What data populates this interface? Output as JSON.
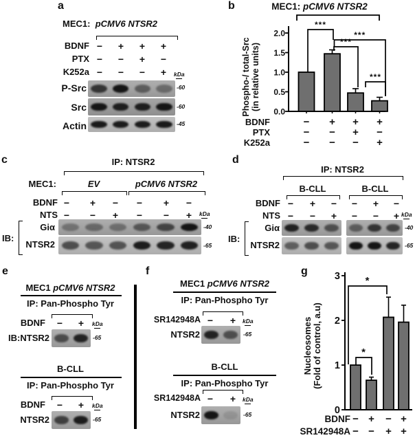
{
  "panels": {
    "a": {
      "letter": "a",
      "header": {
        "prefix": "MEC1:",
        "construct": "pCMV6 NTSR2"
      },
      "kda": "kDa",
      "rows": [
        {
          "label": "BDNF",
          "values": [
            "-",
            "+",
            "+",
            "+"
          ]
        },
        {
          "label": "PTX",
          "values": [
            "-",
            "-",
            "+",
            "-"
          ]
        },
        {
          "label": "K252a",
          "values": [
            "-",
            "-",
            "-",
            "+"
          ]
        }
      ],
      "blots": [
        {
          "label": "P-Src",
          "marker": "-60",
          "bands": [
            0.78,
            1.0,
            0.5,
            0.4
          ]
        },
        {
          "label": "Src",
          "marker": "-60",
          "bands": [
            1.0,
            0.93,
            0.93,
            1.0
          ]
        },
        {
          "label": "Actin",
          "marker": "-45",
          "bands": [
            0.97,
            0.95,
            0.95,
            0.97
          ]
        }
      ]
    },
    "c": {
      "letter": "c",
      "ip": "IP: NTSR2",
      "cell_label": "MEC1:",
      "groups": [
        {
          "name": "EV"
        },
        {
          "name": "pCMV6 NTSR2"
        }
      ],
      "ib": "IB:",
      "kda": "kDa",
      "rows": [
        {
          "label": "BDNF",
          "values": [
            "-",
            "+",
            "-",
            "-",
            "+",
            "-"
          ]
        },
        {
          "label": "NTS",
          "values": [
            "-",
            "-",
            "+",
            "-",
            "-",
            "+"
          ]
        }
      ],
      "blots": [
        {
          "label": "Giα",
          "marker": "-40",
          "bands": [
            0.35,
            0.42,
            0.38,
            0.55,
            0.68,
            1.0
          ]
        },
        {
          "label": "NTSR2",
          "marker": "-65",
          "bands": [
            0.65,
            0.6,
            0.62,
            0.95,
            0.9,
            0.92
          ]
        }
      ]
    },
    "d": {
      "letter": "d",
      "ip": "IP: NTSR2",
      "groups": [
        {
          "name": "B-CLL"
        },
        {
          "name": "B-CLL"
        }
      ],
      "ib": "IB:",
      "kda": "kDa",
      "rows": [
        {
          "label": "BDNF",
          "values": [
            "-",
            "+",
            "-",
            "-",
            "+",
            "-"
          ]
        },
        {
          "label": "NTS",
          "values": [
            "-",
            "-",
            "+",
            "-",
            "-",
            "+"
          ]
        }
      ],
      "blots": [
        {
          "label": "Giα",
          "marker": "-40",
          "bands_left": [
            0.92,
            0.86,
            0.6
          ],
          "bands_right": [
            0.5,
            0.78,
            0.68
          ]
        },
        {
          "label": "NTSR2",
          "marker": "-65",
          "bands_left": [
            0.55,
            0.65,
            0.6
          ],
          "bands_right": [
            1.0,
            1.0,
            0.9
          ]
        }
      ]
    },
    "e": {
      "letter": "e",
      "sections": [
        {
          "title_prefix": "MEC1 ",
          "title_italic": "pCMV6 NTSR2",
          "ip": "IP: Pan-Phospho Tyr",
          "row_label": "BDNF",
          "row_values": [
            "-",
            "+"
          ],
          "kda": "kDa",
          "blot_label": "IB:NTSR2",
          "marker": "-65",
          "bands": [
            0.62,
            0.9
          ]
        },
        {
          "title_prefix": "B-CLL",
          "title_italic": "",
          "ip": "IP: Pan-Phospho Tyr",
          "row_label": "BDNF",
          "row_values": [
            "-",
            "+"
          ],
          "kda": "kDa",
          "blot_label": "NTSR2",
          "marker": "-65",
          "bands": [
            0.7,
            0.95
          ]
        }
      ]
    },
    "f": {
      "letter": "f",
      "sections": [
        {
          "title_prefix": "MEC1 ",
          "title_italic": "pCMV6 NTSR2",
          "ip": "IP: Pan-Phospho Tyr",
          "row_label": "SR142948A",
          "row_values": [
            "-",
            "+"
          ],
          "kda": "kDa",
          "blot_label": "NTSR2",
          "marker": "-65",
          "bands": [
            0.9,
            0.6
          ]
        },
        {
          "title_prefix": "B-CLL",
          "title_italic": "",
          "ip": "IP: Pan-Phospho Tyr",
          "row_label": "SR142948A",
          "row_values": [
            "-",
            "+"
          ],
          "kda": "kDa",
          "blot_label": "NTSR2",
          "marker": "-65",
          "bands": [
            1.0,
            0.12
          ]
        }
      ]
    },
    "b": {
      "letter": "b"
    },
    "g": {
      "letter": "g"
    }
  },
  "chart_data": [
    {
      "panel": "b",
      "type": "bar",
      "title_prefix": "MEC1:",
      "title_italic": "pCMV6 NTSR2",
      "ylabel": [
        "Phospho-/ total-Src",
        "(in relative units)"
      ],
      "yticks": [
        "0.0",
        "0.5",
        "1.0",
        "1.5",
        "2.0"
      ],
      "ylim": [
        0,
        2.0
      ],
      "values": [
        1.0,
        1.47,
        0.47,
        0.27
      ],
      "errors": [
        0,
        0.1,
        0.11,
        0.09
      ],
      "bar_color": "#6f6f6f",
      "grid": false,
      "x_rows": [
        {
          "label": "BDNF",
          "values": [
            "-",
            "+",
            "+",
            "+"
          ]
        },
        {
          "label": "PTX",
          "values": [
            "-",
            "-",
            "+",
            "-"
          ]
        },
        {
          "label": "K252a",
          "values": [
            "-",
            "-",
            "-",
            "+"
          ]
        }
      ],
      "significance": [
        {
          "between": [
            1,
            2
          ],
          "label": "***"
        },
        {
          "between": [
            2,
            3
          ],
          "label": "***"
        },
        {
          "between": [
            2,
            4
          ],
          "label": "***"
        },
        {
          "between": [
            3,
            4
          ],
          "label": "***"
        }
      ]
    },
    {
      "panel": "g",
      "type": "bar",
      "ylabel": [
        "Nucleosomes",
        "(Fold of control, a.u)"
      ],
      "yticks": [
        "0",
        "1",
        "2",
        "3"
      ],
      "ylim": [
        0,
        3
      ],
      "values": [
        1.0,
        0.66,
        2.07,
        1.96
      ],
      "errors": [
        0,
        0.07,
        0.45,
        0.38
      ],
      "bar_color": "#6f6f6f",
      "grid": false,
      "x_rows": [
        {
          "label": "BDNF",
          "values": [
            "-",
            "+",
            "-",
            "+"
          ]
        },
        {
          "label": "SR142948A",
          "values": [
            "-",
            "-",
            "+",
            "+"
          ]
        }
      ],
      "significance": [
        {
          "between": [
            1,
            2
          ],
          "label": "*"
        },
        {
          "between": [
            1,
            3
          ],
          "label": "*"
        }
      ]
    }
  ]
}
